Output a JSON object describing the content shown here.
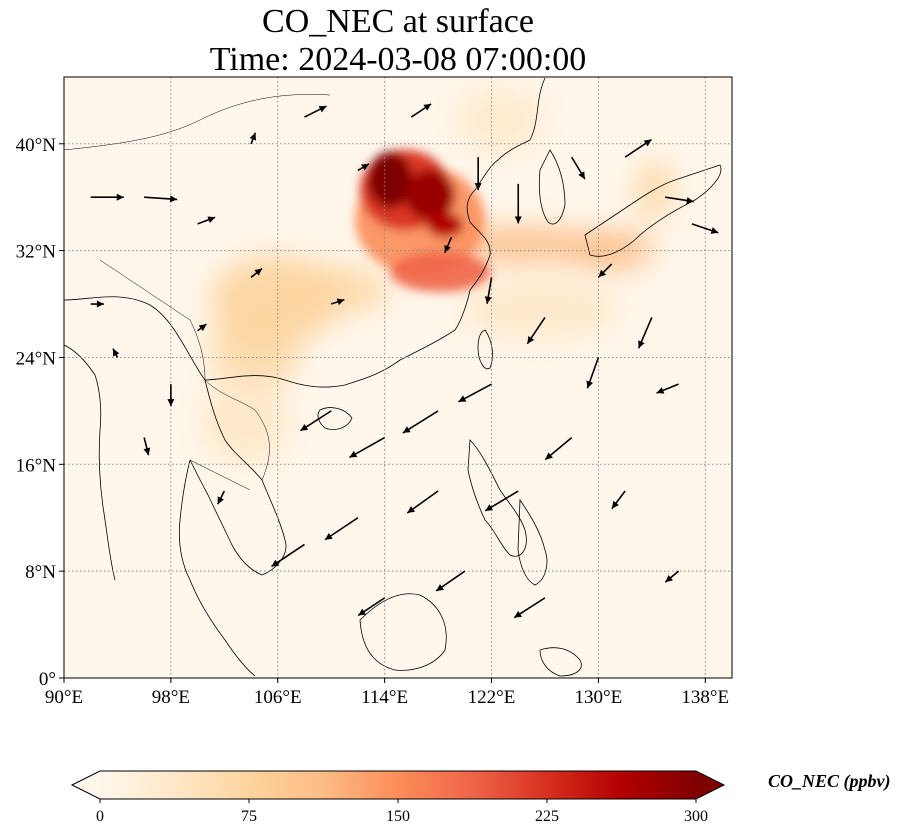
{
  "title": {
    "line1": "CO_NEC at surface",
    "line2": "Time: 2024-03-08 07:00:00"
  },
  "map": {
    "extent": {
      "lon": [
        90,
        140
      ],
      "lat": [
        0,
        45
      ]
    },
    "lon_ticks": [
      "90°E",
      "98°E",
      "106°E",
      "114°E",
      "122°E",
      "130°E",
      "138°E"
    ],
    "lat_ticks": [
      "0°",
      "8°N",
      "16°N",
      "24°N",
      "32°N",
      "40°N"
    ],
    "gridlines": true,
    "coastlines": true
  },
  "colorbar": {
    "label": "CO_NEC (ppbv)",
    "ticks": [
      "0",
      "75",
      "150",
      "225",
      "300"
    ],
    "range": [
      0,
      300
    ],
    "extend": "both",
    "colormap": "OrRd",
    "colors": [
      "#fff7ec",
      "#fee8c8",
      "#fdd49e",
      "#fdbb84",
      "#fc8d59",
      "#ef6548",
      "#d7301f",
      "#b30000",
      "#7f0000"
    ]
  },
  "chart_data": {
    "type": "heatmap",
    "variable": "CO_NEC",
    "units": "ppbv",
    "level": "surface",
    "time": "2024-03-08 07:00:00",
    "value_range": [
      0,
      300
    ],
    "hotspots": [
      {
        "lon": 116.5,
        "lat": 36.5,
        "value": 280
      },
      {
        "lon": 114.5,
        "lat": 37.5,
        "value": 260
      },
      {
        "lon": 118.5,
        "lat": 33.5,
        "value": 200
      },
      {
        "lon": 117.5,
        "lat": 31.0,
        "value": 160
      },
      {
        "lon": 126.0,
        "lat": 32.0,
        "value": 90
      },
      {
        "lon": 133.5,
        "lat": 32.5,
        "value": 80
      },
      {
        "lon": 107.0,
        "lat": 30.5,
        "value": 70
      },
      {
        "lon": 103.5,
        "lat": 26.0,
        "value": 55
      },
      {
        "lon": 106.0,
        "lat": 20.0,
        "value": 40
      }
    ],
    "wind_vectors": [
      {
        "lon": 92,
        "lat": 36,
        "u": 1.5,
        "v": 0.0
      },
      {
        "lon": 96,
        "lat": 36,
        "u": 1.5,
        "v": -0.1
      },
      {
        "lon": 100,
        "lat": 34,
        "u": 0.8,
        "v": 0.3
      },
      {
        "lon": 104,
        "lat": 40,
        "u": 0.2,
        "v": 0.5
      },
      {
        "lon": 108,
        "lat": 42,
        "u": 1.0,
        "v": 0.5
      },
      {
        "lon": 116,
        "lat": 42,
        "u": 0.9,
        "v": 0.6
      },
      {
        "lon": 121,
        "lat": 39,
        "u": 0.0,
        "v": -1.5
      },
      {
        "lon": 124,
        "lat": 37,
        "u": 0.0,
        "v": -1.8
      },
      {
        "lon": 128,
        "lat": 39,
        "u": 0.6,
        "v": -1.0
      },
      {
        "lon": 132,
        "lat": 39,
        "u": 1.2,
        "v": 0.8
      },
      {
        "lon": 135,
        "lat": 36,
        "u": 1.3,
        "v": -0.2
      },
      {
        "lon": 137,
        "lat": 34,
        "u": 1.2,
        "v": -0.4
      },
      {
        "lon": 131,
        "lat": 31,
        "u": -0.6,
        "v": -0.6
      },
      {
        "lon": 126,
        "lat": 27,
        "u": -0.8,
        "v": -1.2
      },
      {
        "lon": 130,
        "lat": 24,
        "u": -0.5,
        "v": -1.4
      },
      {
        "lon": 134,
        "lat": 27,
        "u": -0.6,
        "v": -1.4
      },
      {
        "lon": 122,
        "lat": 22,
        "u": -1.5,
        "v": -0.8
      },
      {
        "lon": 118,
        "lat": 20,
        "u": -1.6,
        "v": -1.0
      },
      {
        "lon": 114,
        "lat": 18,
        "u": -1.6,
        "v": -0.9
      },
      {
        "lon": 110,
        "lat": 20,
        "u": -1.4,
        "v": -0.9
      },
      {
        "lon": 118,
        "lat": 14,
        "u": -1.4,
        "v": -1.0
      },
      {
        "lon": 112,
        "lat": 12,
        "u": -1.5,
        "v": -1.0
      },
      {
        "lon": 124,
        "lat": 14,
        "u": -1.5,
        "v": -0.9
      },
      {
        "lon": 128,
        "lat": 18,
        "u": -1.2,
        "v": -1.0
      },
      {
        "lon": 108,
        "lat": 10,
        "u": -1.5,
        "v": -1.0
      },
      {
        "lon": 114,
        "lat": 6,
        "u": -1.2,
        "v": -0.8
      },
      {
        "lon": 120,
        "lat": 8,
        "u": -1.3,
        "v": -0.9
      },
      {
        "lon": 126,
        "lat": 6,
        "u": -1.4,
        "v": -0.9
      },
      {
        "lon": 98,
        "lat": 22,
        "u": 0.0,
        "v": -1.0
      },
      {
        "lon": 96,
        "lat": 18,
        "u": 0.2,
        "v": -0.8
      },
      {
        "lon": 102,
        "lat": 14,
        "u": -0.3,
        "v": -0.6
      },
      {
        "lon": 110,
        "lat": 28,
        "u": 0.6,
        "v": 0.2
      },
      {
        "lon": 104,
        "lat": 30,
        "u": 0.5,
        "v": 0.4
      },
      {
        "lon": 100,
        "lat": 26,
        "u": 0.4,
        "v": 0.3
      },
      {
        "lon": 92,
        "lat": 28,
        "u": 0.6,
        "v": 0.0
      },
      {
        "lon": 94,
        "lat": 24,
        "u": -0.2,
        "v": 0.4
      },
      {
        "lon": 112,
        "lat": 38,
        "u": 0.5,
        "v": 0.3
      },
      {
        "lon": 119,
        "lat": 33,
        "u": -0.3,
        "v": -0.7
      },
      {
        "lon": 122,
        "lat": 30,
        "u": -0.2,
        "v": -1.2
      },
      {
        "lon": 136,
        "lat": 22,
        "u": -1.0,
        "v": -0.4
      },
      {
        "lon": 132,
        "lat": 14,
        "u": -0.6,
        "v": -0.8
      },
      {
        "lon": 136,
        "lat": 8,
        "u": -0.6,
        "v": -0.5
      }
    ]
  }
}
